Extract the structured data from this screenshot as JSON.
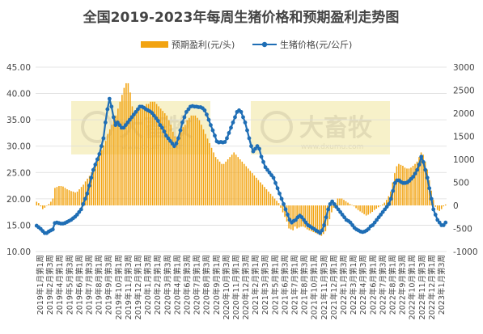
{
  "chart_data": {
    "type": "bar",
    "title": "全国2019-2023年每周生猪价格和预期盈利走势图",
    "legend_position": "top-center",
    "grid": true,
    "watermark": {
      "brand": "大畜牧",
      "url": "www.dxumu.com"
    },
    "y_left": {
      "min": 10,
      "max": 45,
      "step": 5,
      "format": "0.00"
    },
    "y_right": {
      "min": -1000,
      "max": 3000,
      "step": 500
    },
    "x_tick_labels": [
      "2019年1月第1周",
      "2019年2月第3周",
      "2019年4月第1周",
      "2019年5月第3周",
      "2019年6月第1周",
      "2019年7月第3周",
      "2019年8月第1周",
      "2019年9月第3周",
      "2019年10月第1周",
      "2019年11月第3周",
      "2019年12月第1周",
      "2020年1月第3周",
      "2020年2月第1周",
      "2020年3月第3周",
      "2020年4月第1周",
      "2020年6月第3周",
      "2020年7月第1周",
      "2020年8月第3周",
      "2020年9月第1周",
      "2020年10月第3周",
      "2020年11月第1周",
      "2020年12月第3周",
      "2021年2月第1周",
      "2021年3月第3周",
      "2021年5月第1周",
      "2021年6月第3周",
      "2021年7月第1周",
      "2021年8月第3周",
      "2021年10月第1周",
      "2021年11月第3周",
      "2021年12月第1周",
      "2022年1月第3周",
      "2022年3月第1周",
      "2022年4月第3周",
      "2022年6月第1周",
      "2022年7月第3周",
      "2022年8月第1周",
      "2022年9月第3周",
      "2022年10月第1周",
      "2022年11月第3周",
      "2022年12月第1周",
      "2023年1月第3周"
    ],
    "series": [
      {
        "name": "预期盈利(元/头)",
        "kind": "bar",
        "axis": "right",
        "color": "#f2a310",
        "values": [
          80,
          50,
          -20,
          -80,
          -50,
          0,
          30,
          80,
          150,
          380,
          400,
          420,
          420,
          410,
          380,
          350,
          330,
          310,
          300,
          280,
          300,
          350,
          400,
          450,
          520,
          580,
          640,
          720,
          800,
          900,
          1000,
          1100,
          1200,
          1300,
          1400,
          1550,
          1650,
          1750,
          1850,
          1950,
          2100,
          2250,
          2400,
          2550,
          2650,
          2650,
          2450,
          2150,
          2000,
          2000,
          2050,
          2100,
          2150,
          2150,
          2200,
          2200,
          2250,
          2250,
          2250,
          2200,
          2150,
          2100,
          2050,
          2000,
          1950,
          1850,
          1750,
          1600,
          1500,
          1450,
          1500,
          1600,
          1700,
          1750,
          1850,
          1900,
          1950,
          1950,
          1950,
          1900,
          1850,
          1750,
          1650,
          1550,
          1450,
          1350,
          1250,
          1150,
          1050,
          1000,
          950,
          900,
          900,
          950,
          1000,
          1050,
          1100,
          1150,
          1100,
          1050,
          1000,
          950,
          900,
          850,
          800,
          750,
          700,
          650,
          600,
          550,
          500,
          450,
          400,
          350,
          300,
          250,
          200,
          150,
          100,
          50,
          -50,
          -150,
          -250,
          -350,
          -500,
          -520,
          -540,
          -460,
          -500,
          -480,
          -460,
          -460,
          -480,
          -520,
          -540,
          -560,
          -580,
          -600,
          -620,
          -640,
          -660,
          -620,
          -560,
          -440,
          -300,
          -150,
          -50,
          50,
          150,
          150,
          150,
          120,
          90,
          60,
          30,
          10,
          -20,
          -60,
          -100,
          -130,
          -160,
          -190,
          -220,
          -200,
          -170,
          -140,
          -100,
          -70,
          -40,
          -10,
          20,
          60,
          120,
          200,
          300,
          500,
          700,
          850,
          900,
          880,
          860,
          820,
          800,
          800,
          820,
          860,
          900,
          950,
          1050,
          1150,
          1100,
          950,
          780,
          550,
          320,
          120,
          -30,
          -100,
          -120,
          -80,
          -20,
          20
        ]
      },
      {
        "name": "生猪价格(元/公斤)",
        "kind": "line",
        "axis": "left",
        "color": "#1f6eb5",
        "values": [
          14.9,
          14.6,
          14.3,
          13.9,
          13.5,
          13.5,
          13.8,
          14.0,
          14.2,
          15.4,
          15.5,
          15.4,
          15.3,
          15.3,
          15.4,
          15.6,
          15.8,
          16.0,
          16.3,
          16.6,
          17.0,
          17.5,
          18.0,
          19.0,
          20.0,
          21.0,
          22.5,
          24.0,
          25.5,
          26.5,
          27.5,
          28.5,
          30.0,
          31.5,
          34.5,
          37.0,
          39.0,
          37.5,
          35.5,
          34.0,
          34.5,
          34.0,
          33.5,
          33.5,
          34.0,
          34.5,
          35.0,
          35.5,
          36.0,
          36.5,
          37.0,
          37.5,
          37.5,
          37.3,
          37.0,
          36.8,
          36.6,
          36.3,
          35.8,
          35.3,
          34.8,
          34.0,
          33.5,
          32.8,
          32.0,
          31.5,
          31.0,
          30.5,
          30.0,
          30.5,
          31.5,
          33.0,
          34.5,
          35.5,
          36.5,
          37.0,
          37.5,
          37.6,
          37.5,
          37.5,
          37.4,
          37.4,
          37.2,
          36.8,
          36.0,
          35.0,
          34.0,
          33.0,
          32.0,
          30.9,
          30.7,
          30.8,
          30.7,
          30.8,
          31.5,
          32.5,
          33.5,
          34.5,
          35.5,
          36.5,
          36.8,
          36.5,
          35.5,
          34.5,
          33.0,
          31.5,
          30.0,
          29.0,
          29.5,
          30.0,
          29.5,
          28.0,
          27.0,
          26.0,
          25.5,
          25.0,
          24.5,
          24.0,
          23.0,
          22.0,
          21.0,
          20.0,
          19.0,
          18.0,
          17.0,
          16.0,
          15.5,
          15.8,
          16.0,
          16.5,
          16.8,
          16.5,
          16.0,
          15.5,
          15.0,
          14.8,
          14.5,
          14.3,
          14.0,
          13.8,
          13.5,
          14.0,
          15.0,
          16.5,
          18.0,
          19.0,
          19.5,
          19.0,
          18.5,
          18.0,
          17.5,
          17.0,
          16.5,
          16.0,
          15.8,
          15.5,
          15.0,
          14.5,
          14.2,
          14.0,
          13.8,
          13.7,
          13.8,
          14.0,
          14.3,
          14.8,
          15.0,
          15.5,
          16.0,
          16.5,
          17.0,
          17.5,
          18.0,
          18.5,
          19.0,
          20.0,
          21.5,
          23.0,
          23.5,
          23.5,
          23.2,
          23.0,
          23.0,
          23.1,
          23.4,
          23.8,
          24.2,
          24.8,
          25.5,
          26.5,
          28.0,
          27.0,
          25.5,
          24.0,
          22.0,
          20.0,
          18.0,
          17.0,
          16.0,
          15.5,
          15.0,
          15.0,
          15.5
        ]
      }
    ]
  }
}
